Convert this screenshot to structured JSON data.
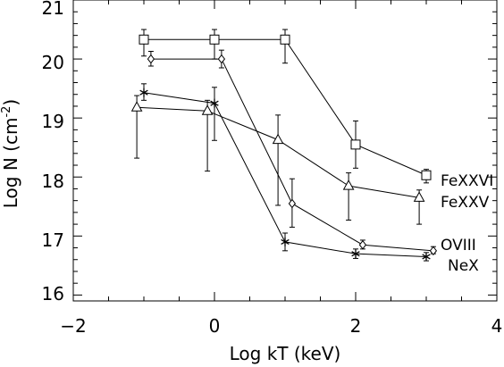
{
  "chart_data": {
    "type": "scatter",
    "xlabel": "Log kT (keV)",
    "ylabel_main": "Log N (cm",
    "ylabel_exp": "-2",
    "ylabel_close": ")",
    "xlim": [
      -2,
      4
    ],
    "ylim": [
      15.9,
      21
    ],
    "xticks": [
      -2,
      0,
      2,
      4
    ],
    "xtick_labels": [
      "−2",
      "0",
      "2",
      "4"
    ],
    "yticks": [
      16,
      17,
      18,
      19,
      20,
      21
    ],
    "ytick_labels": [
      "16",
      "17",
      "18",
      "19",
      "20",
      "21"
    ],
    "grid": false,
    "series": [
      {
        "name": "FeXXVI",
        "marker": "square",
        "points": [
          {
            "x": -1.0,
            "y": 20.33,
            "lo": 20.05,
            "hi": 20.5
          },
          {
            "x": 0.0,
            "y": 20.33,
            "lo": 20.0,
            "hi": 20.5
          },
          {
            "x": 1.0,
            "y": 20.33,
            "lo": 19.93,
            "hi": 20.5
          },
          {
            "x": 2.0,
            "y": 18.55,
            "lo": 18.15,
            "hi": 18.95
          },
          {
            "x": 3.0,
            "y": 18.03,
            "lo": 17.9,
            "hi": 18.13
          }
        ]
      },
      {
        "name": "FeXXV",
        "marker": "triangle",
        "points": [
          {
            "x": -1.1,
            "y": 19.18,
            "lo": 18.32,
            "hi": 19.38
          },
          {
            "x": -0.1,
            "y": 19.12,
            "lo": 18.1,
            "hi": 19.3
          },
          {
            "x": 0.9,
            "y": 18.63,
            "lo": 17.52,
            "hi": 19.05
          },
          {
            "x": 1.9,
            "y": 17.85,
            "lo": 17.27,
            "hi": 18.07
          },
          {
            "x": 2.9,
            "y": 17.65,
            "lo": 17.2,
            "hi": 17.78
          }
        ]
      },
      {
        "name": "OVIII",
        "marker": "diamond",
        "points": [
          {
            "x": -0.9,
            "y": 20.0,
            "lo": 19.88,
            "hi": 20.13
          },
          {
            "x": 0.1,
            "y": 20.0,
            "lo": 19.85,
            "hi": 20.15
          },
          {
            "x": 1.1,
            "y": 17.55,
            "lo": 17.15,
            "hi": 17.97
          },
          {
            "x": 2.1,
            "y": 16.85,
            "lo": 16.78,
            "hi": 16.93
          },
          {
            "x": 3.1,
            "y": 16.75,
            "lo": 16.7,
            "hi": 16.82
          }
        ]
      },
      {
        "name": "NeX",
        "marker": "asterisk",
        "points": [
          {
            "x": -1.0,
            "y": 19.43,
            "lo": 19.3,
            "hi": 19.58
          },
          {
            "x": 0.0,
            "y": 19.25,
            "lo": 18.62,
            "hi": 19.52
          },
          {
            "x": 1.0,
            "y": 16.9,
            "lo": 16.75,
            "hi": 17.05
          },
          {
            "x": 2.0,
            "y": 16.7,
            "lo": 16.62,
            "hi": 16.78
          },
          {
            "x": 3.0,
            "y": 16.65,
            "lo": 16.58,
            "hi": 16.72
          }
        ]
      }
    ]
  }
}
